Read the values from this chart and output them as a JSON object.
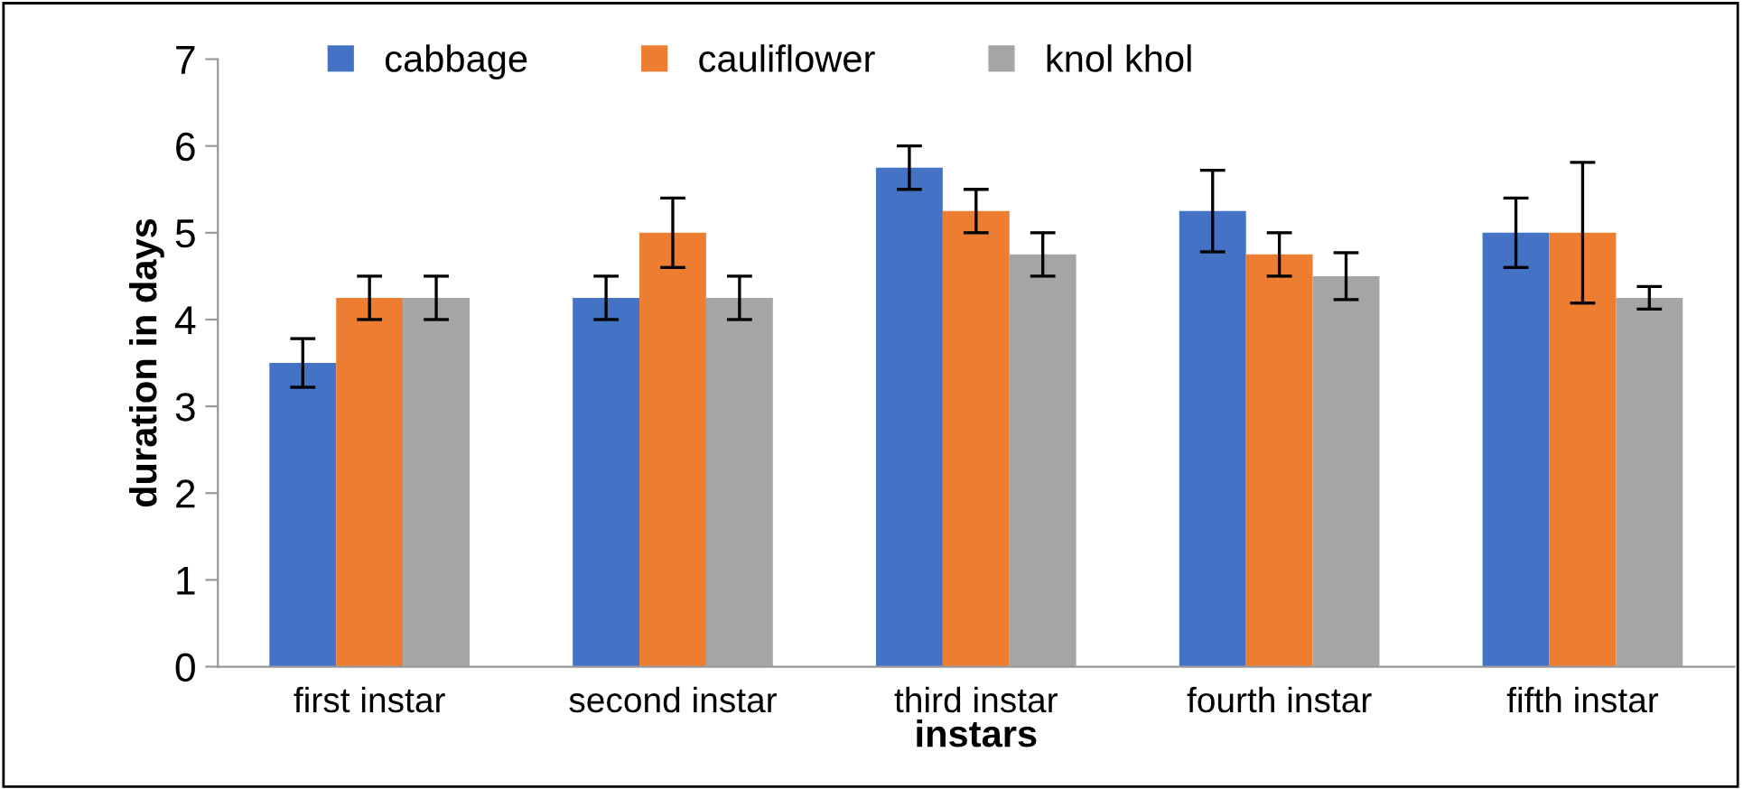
{
  "chart_data": {
    "type": "bar",
    "xlabel": "instars",
    "ylabel": "duration in days",
    "categories": [
      "first instar",
      "second instar",
      "third instar",
      "fourth instar",
      "fifth instar"
    ],
    "series": [
      {
        "name": "cabbage",
        "color": "#4472c4",
        "values": [
          3.5,
          4.25,
          5.75,
          5.25,
          5.0
        ],
        "errors": [
          0.28,
          0.25,
          0.25,
          0.47,
          0.4
        ]
      },
      {
        "name": "cauliflower",
        "color": "#ed7d31",
        "values": [
          4.25,
          5.0,
          5.25,
          4.75,
          5.0
        ],
        "errors": [
          0.25,
          0.4,
          0.25,
          0.25,
          0.81
        ]
      },
      {
        "name": "knol khol",
        "color": "#a5a5a5",
        "values": [
          4.25,
          4.25,
          4.75,
          4.5,
          4.25
        ],
        "errors": [
          0.25,
          0.25,
          0.25,
          0.27,
          0.13
        ]
      }
    ],
    "ylim": [
      0,
      7
    ],
    "yticks": [
      0,
      1,
      2,
      3,
      4,
      5,
      6,
      7
    ],
    "grid": false,
    "legend": "top left"
  }
}
